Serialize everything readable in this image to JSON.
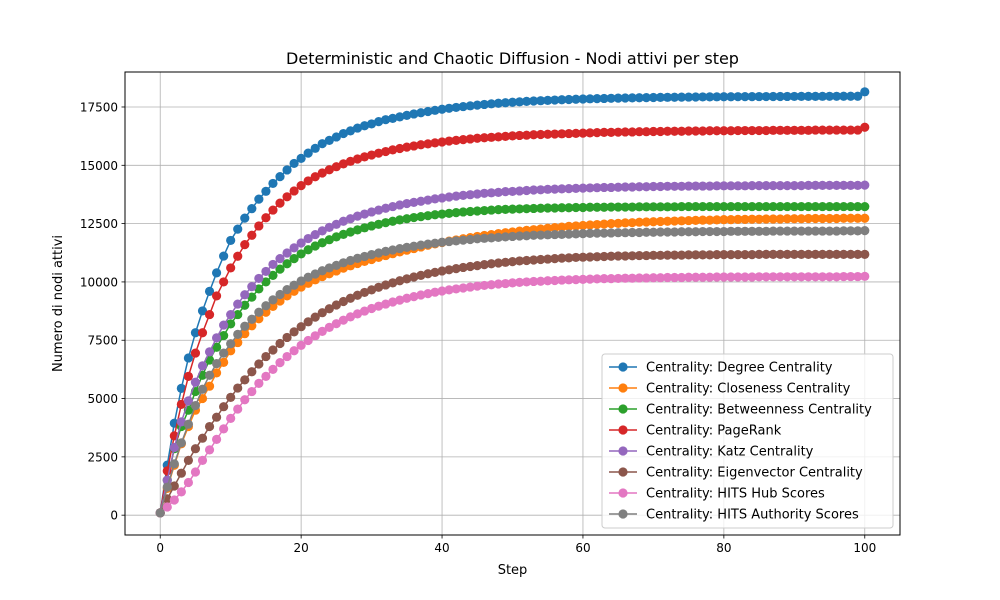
{
  "chart_data": {
    "type": "line",
    "title": "Deterministic and Chaotic Diffusion - Nodi attivi per step",
    "xlabel": "Step",
    "ylabel": "Numero di nodi attivi",
    "xlim": [
      -5,
      105
    ],
    "ylim": [
      -850,
      19000
    ],
    "xticks": [
      0,
      20,
      40,
      60,
      80,
      100
    ],
    "yticks": [
      0,
      2500,
      5000,
      7500,
      10000,
      12500,
      15000,
      17500
    ],
    "grid": true,
    "legend_position": "lower-right",
    "steps": 100,
    "start_value": 100,
    "series": [
      {
        "name": "Centrality: Degree Centrality",
        "color": "#1f77b4",
        "values": [
          100,
          2146,
          3943,
          5437,
          6740,
          7820,
          8757,
          9595,
          10389,
          11108,
          11779,
          12265,
          12734,
          13141,
          13549,
          13885,
          14223,
          14514,
          14801,
          15080,
          15297,
          15523,
          15728,
          15927,
          16068,
          16215,
          16361,
          16475,
          16596,
          16695,
          16774,
          16873,
          16956,
          17013,
          17075,
          17140,
          17202,
          17254,
          17306,
          17357,
          17403,
          17444,
          17481,
          17518,
          17550,
          17581,
          17609,
          17636,
          17660,
          17681,
          17702,
          17721,
          17739,
          17756,
          17770,
          17785,
          17798,
          17810,
          17821,
          17832,
          17841,
          17850,
          17858,
          17866,
          17873,
          17880,
          17886,
          17891,
          17897,
          17902,
          17907,
          17911,
          17915,
          17918,
          17922,
          17925,
          17928,
          17931,
          17933,
          17936,
          17938,
          17940,
          17942,
          17944,
          17945,
          17947,
          17948,
          17950,
          17951,
          17952,
          17953,
          17954,
          17955,
          17956,
          17957,
          17958,
          17958,
          17959,
          17960,
          17960,
          18150
        ]
      },
      {
        "name": "Centrality: Closeness Centrality",
        "color": "#ff7f0e",
        "values": [
          100,
          1150,
          2140,
          3060,
          3800,
          4500,
          5000,
          5530,
          6100,
          6550,
          7050,
          7400,
          7780,
          8120,
          8420,
          8700,
          8950,
          9180,
          9400,
          9600,
          9780,
          9940,
          10090,
          10230,
          10350,
          10470,
          10590,
          10690,
          10790,
          10880,
          10960,
          11050,
          11130,
          11210,
          11290,
          11360,
          11430,
          11500,
          11570,
          11630,
          11690,
          11750,
          11800,
          11850,
          11900,
          11950,
          11990,
          12030,
          12070,
          12110,
          12140,
          12180,
          12210,
          12240,
          12270,
          12300,
          12330,
          12350,
          12380,
          12400,
          12420,
          12440,
          12460,
          12480,
          12500,
          12510,
          12530,
          12540,
          12560,
          12570,
          12580,
          12590,
          12600,
          12610,
          12620,
          12630,
          12640,
          12650,
          12650,
          12660,
          12670,
          12670,
          12680,
          12680,
          12690,
          12690,
          12700,
          12700,
          12700,
          12710,
          12710,
          12710,
          12720,
          12720,
          12720,
          12720,
          12720,
          12730,
          12730,
          12730,
          12730
        ]
      },
      {
        "name": "Centrality: Betweenness Centrality",
        "color": "#2ca02c",
        "values": [
          100,
          1500,
          2850,
          3800,
          4500,
          5300,
          6000,
          6650,
          7200,
          7700,
          8200,
          8600,
          9000,
          9350,
          9700,
          10000,
          10280,
          10550,
          10780,
          11000,
          11200,
          11380,
          11540,
          11680,
          11810,
          11930,
          12040,
          12140,
          12230,
          12320,
          12400,
          12470,
          12540,
          12600,
          12660,
          12710,
          12760,
          12800,
          12840,
          12880,
          12910,
          12940,
          12970,
          13000,
          13020,
          13040,
          13060,
          13080,
          13100,
          13110,
          13120,
          13130,
          13140,
          13150,
          13160,
          13170,
          13170,
          13180,
          13180,
          13190,
          13190,
          13200,
          13200,
          13200,
          13210,
          13210,
          13210,
          13210,
          13220,
          13220,
          13220,
          13220,
          13220,
          13220,
          13230,
          13230,
          13230,
          13230,
          13230,
          13230,
          13230,
          13230,
          13230,
          13230,
          13230,
          13230,
          13230,
          13230,
          13230,
          13230,
          13230,
          13230,
          13230,
          13230,
          13230,
          13230,
          13230,
          13230,
          13230,
          13230,
          13230
        ]
      },
      {
        "name": "Centrality: PageRank",
        "color": "#d62728",
        "values": [
          100,
          1900,
          3400,
          4750,
          5950,
          6950,
          7820,
          8600,
          9400,
          10000,
          10600,
          11100,
          11600,
          12000,
          12400,
          12750,
          13080,
          13380,
          13650,
          13900,
          14130,
          14330,
          14510,
          14670,
          14810,
          14940,
          15060,
          15170,
          15270,
          15360,
          15440,
          15520,
          15590,
          15660,
          15720,
          15780,
          15830,
          15880,
          15920,
          15960,
          16000,
          16040,
          16070,
          16100,
          16130,
          16160,
          16180,
          16200,
          16220,
          16240,
          16260,
          16280,
          16290,
          16310,
          16320,
          16330,
          16340,
          16350,
          16360,
          16370,
          16380,
          16390,
          16400,
          16410,
          16410,
          16420,
          16430,
          16430,
          16440,
          16440,
          16450,
          16450,
          16460,
          16460,
          16460,
          16470,
          16470,
          16470,
          16480,
          16480,
          16480,
          16480,
          16490,
          16490,
          16490,
          16490,
          16490,
          16500,
          16500,
          16500,
          16500,
          16500,
          16500,
          16510,
          16510,
          16510,
          16510,
          16510,
          16510,
          16510,
          16630
        ]
      },
      {
        "name": "Centrality: Katz Centrality",
        "color": "#9467bd",
        "values": [
          100,
          1500,
          2900,
          4000,
          4900,
          5700,
          6400,
          7000,
          7600,
          8150,
          8600,
          9050,
          9450,
          9800,
          10150,
          10450,
          10750,
          11000,
          11240,
          11460,
          11670,
          11860,
          12030,
          12190,
          12340,
          12470,
          12600,
          12710,
          12820,
          12910,
          13000,
          13080,
          13160,
          13230,
          13300,
          13360,
          13410,
          13460,
          13510,
          13560,
          13600,
          13640,
          13680,
          13710,
          13740,
          13770,
          13800,
          13820,
          13840,
          13870,
          13880,
          13900,
          13920,
          13940,
          13950,
          13970,
          13980,
          13990,
          14000,
          14010,
          14020,
          14030,
          14040,
          14050,
          14050,
          14060,
          14070,
          14070,
          14080,
          14080,
          14090,
          14090,
          14100,
          14100,
          14100,
          14110,
          14110,
          14110,
          14110,
          14120,
          14120,
          14120,
          14120,
          14120,
          14130,
          14130,
          14130,
          14130,
          14130,
          14130,
          14130,
          14130,
          14140,
          14140,
          14140,
          14140,
          14140,
          14140,
          14140,
          14140,
          14150
        ]
      },
      {
        "name": "Centrality: Eigenvector Centrality",
        "color": "#8c564b",
        "values": [
          100,
          700,
          1250,
          1800,
          2350,
          2850,
          3300,
          3800,
          4200,
          4650,
          5050,
          5450,
          5800,
          6150,
          6480,
          6800,
          7080,
          7360,
          7620,
          7860,
          8080,
          8290,
          8490,
          8680,
          8850,
          9010,
          9160,
          9300,
          9430,
          9550,
          9660,
          9770,
          9870,
          9960,
          10050,
          10130,
          10210,
          10280,
          10350,
          10410,
          10470,
          10520,
          10570,
          10620,
          10660,
          10700,
          10740,
          10780,
          10810,
          10840,
          10870,
          10900,
          10920,
          10940,
          10960,
          10980,
          11000,
          11020,
          11030,
          11050,
          11060,
          11070,
          11080,
          11090,
          11100,
          11110,
          11110,
          11120,
          11130,
          11130,
          11140,
          11140,
          11150,
          11150,
          11150,
          11160,
          11160,
          11160,
          11160,
          11170,
          11170,
          11170,
          11170,
          11170,
          11170,
          11180,
          11180,
          11180,
          11180,
          11180,
          11180,
          11180,
          11180,
          11180,
          11180,
          11180,
          11180,
          11180,
          11180,
          11180,
          11180
        ]
      },
      {
        "name": "Centrality: HITS Hub Scores",
        "color": "#e377c2",
        "values": [
          100,
          350,
          650,
          1000,
          1400,
          1850,
          2350,
          2800,
          3250,
          3700,
          4150,
          4550,
          4950,
          5300,
          5650,
          5950,
          6250,
          6540,
          6800,
          7050,
          7280,
          7490,
          7690,
          7880,
          8050,
          8210,
          8360,
          8500,
          8630,
          8750,
          8860,
          8960,
          9050,
          9140,
          9220,
          9300,
          9370,
          9440,
          9500,
          9560,
          9610,
          9660,
          9700,
          9740,
          9780,
          9820,
          9850,
          9880,
          9910,
          9930,
          9960,
          9980,
          10000,
          10020,
          10030,
          10050,
          10060,
          10080,
          10090,
          10100,
          10110,
          10120,
          10130,
          10140,
          10140,
          10150,
          10160,
          10160,
          10170,
          10170,
          10180,
          10180,
          10190,
          10190,
          10190,
          10200,
          10200,
          10200,
          10200,
          10210,
          10210,
          10210,
          10210,
          10210,
          10210,
          10220,
          10220,
          10220,
          10220,
          10220,
          10220,
          10220,
          10220,
          10220,
          10220,
          10220,
          10220,
          10230,
          10230,
          10230,
          10240
        ]
      },
      {
        "name": "Centrality: HITS Authority Scores",
        "color": "#7f7f7f",
        "values": [
          100,
          1200,
          2200,
          3100,
          3900,
          4700,
          5400,
          6000,
          6500,
          6950,
          7350,
          7750,
          8100,
          8400,
          8700,
          8980,
          9230,
          9460,
          9670,
          9860,
          10040,
          10200,
          10340,
          10480,
          10600,
          10710,
          10820,
          10920,
          11010,
          11090,
          11170,
          11240,
          11310,
          11370,
          11430,
          11480,
          11530,
          11580,
          11620,
          11660,
          11700,
          11730,
          11760,
          11790,
          11820,
          11850,
          11870,
          11890,
          11910,
          11930,
          11950,
          11970,
          11980,
          12000,
          12010,
          12020,
          12030,
          12040,
          12050,
          12060,
          12070,
          12080,
          12090,
          12090,
          12100,
          12110,
          12110,
          12120,
          12120,
          12130,
          12130,
          12140,
          12140,
          12140,
          12150,
          12150,
          12150,
          12160,
          12160,
          12160,
          12160,
          12170,
          12170,
          12170,
          12170,
          12170,
          12170,
          12180,
          12180,
          12180,
          12180,
          12180,
          12180,
          12180,
          12180,
          12180,
          12180,
          12190,
          12190,
          12190,
          12200
        ]
      }
    ]
  }
}
